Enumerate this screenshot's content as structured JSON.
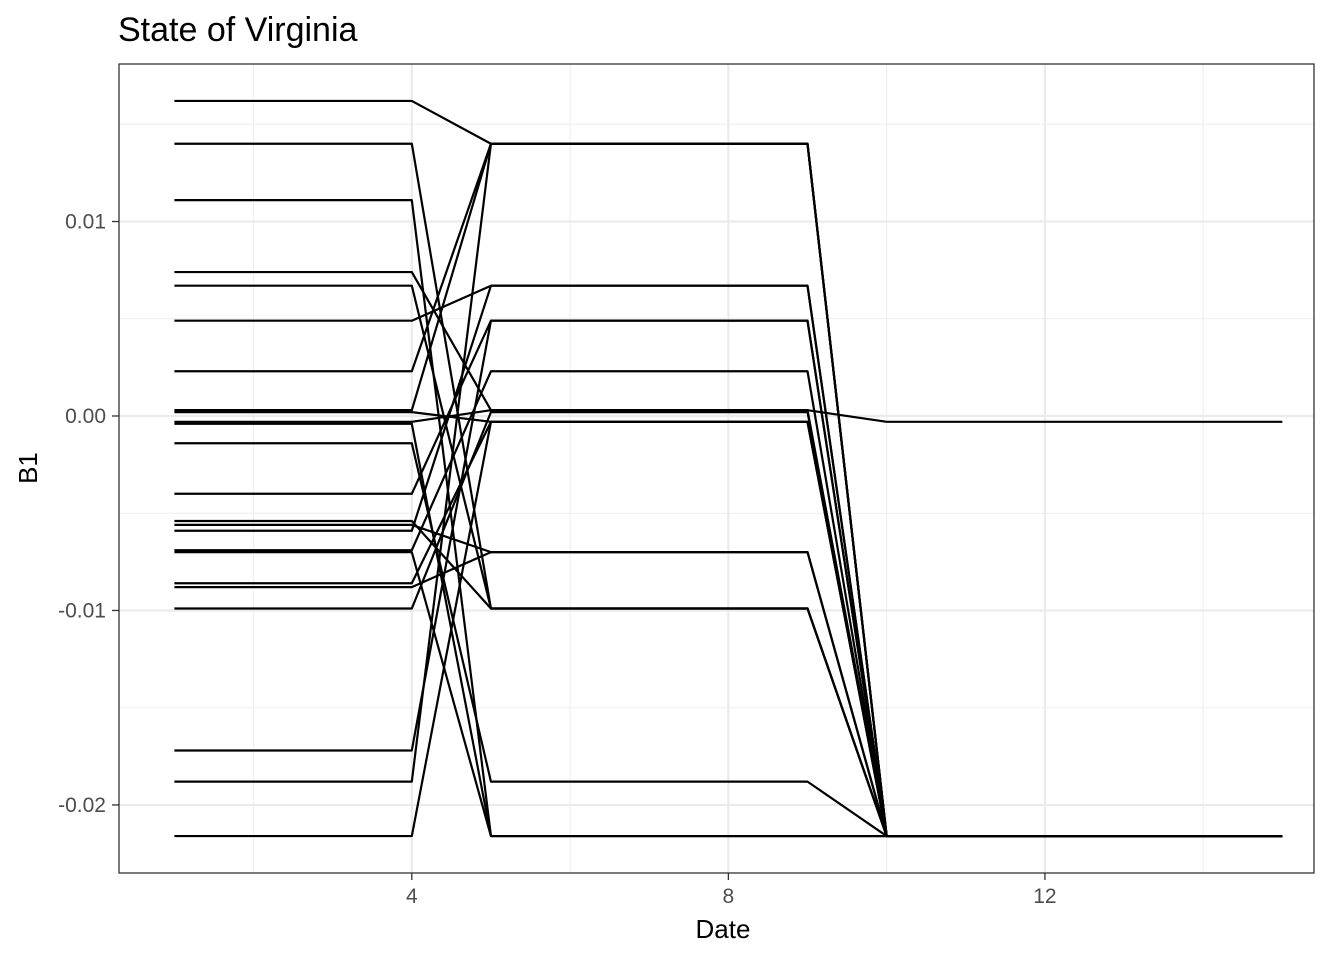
{
  "chart_data": {
    "type": "line",
    "title": "State of Virginia",
    "xlabel": "Date",
    "ylabel": "B1",
    "xlim": [
      0.3,
      15.4
    ],
    "ylim": [
      -0.0235,
      0.0181
    ],
    "x_ticks": [
      4,
      8,
      12
    ],
    "x_tick_labels": [
      "4",
      "8",
      "12"
    ],
    "y_ticks": [
      -0.02,
      -0.01,
      0.0,
      0.01
    ],
    "y_tick_labels": [
      "-0.02",
      "-0.01",
      "0.00",
      "0.01"
    ],
    "grid": true,
    "legend": "none",
    "line_color": "#000000",
    "x": [
      1,
      4,
      5,
      9,
      10,
      15
    ],
    "series": [
      {
        "values": [
          0.0162,
          0.0162,
          0.014,
          0.014,
          -0.0216,
          -0.0216
        ]
      },
      {
        "values": [
          0.014,
          0.014,
          -0.0099,
          -0.0099,
          -0.0216,
          -0.0216
        ]
      },
      {
        "values": [
          0.0111,
          0.0111,
          -0.0216,
          -0.0216,
          -0.0216,
          -0.0216
        ]
      },
      {
        "values": [
          0.0074,
          0.0074,
          0.0003,
          0.0003,
          -0.0216,
          -0.0216
        ]
      },
      {
        "values": [
          0.0067,
          0.0067,
          -0.0099,
          -0.0099,
          -0.0216,
          -0.0216
        ]
      },
      {
        "values": [
          0.0049,
          0.0049,
          0.0067,
          0.0067,
          -0.0216,
          -0.0216
        ]
      },
      {
        "values": [
          0.0023,
          0.0023,
          0.014,
          0.014,
          -0.0216,
          -0.0216
        ]
      },
      {
        "values": [
          0.0003,
          0.0003,
          0.014,
          0.014,
          -0.0216,
          -0.0216
        ]
      },
      {
        "values": [
          0.0002,
          0.0002,
          -0.0003,
          -0.0003,
          -0.0216,
          -0.0216
        ]
      },
      {
        "values": [
          -0.0003,
          -0.0003,
          0.0003,
          0.0003,
          -0.0003,
          -0.0003
        ]
      },
      {
        "values": [
          -0.0004,
          -0.0004,
          -0.0216,
          -0.0216,
          -0.0216,
          -0.0216
        ]
      },
      {
        "values": [
          -0.0014,
          -0.0014,
          -0.0188,
          -0.0188,
          -0.0216,
          -0.0216
        ]
      },
      {
        "values": [
          -0.004,
          -0.004,
          0.0049,
          0.0049,
          -0.0216,
          -0.0216
        ]
      },
      {
        "values": [
          -0.0054,
          -0.0054,
          -0.0099,
          -0.0099,
          -0.0216,
          -0.0216
        ]
      },
      {
        "values": [
          -0.0056,
          -0.0056,
          -0.007,
          -0.007,
          -0.0216,
          -0.0216
        ]
      },
      {
        "values": [
          -0.0059,
          -0.0059,
          0.0067,
          0.0067,
          -0.0216,
          -0.0216
        ]
      },
      {
        "values": [
          -0.0069,
          -0.0069,
          0.0023,
          0.0023,
          -0.0216,
          -0.0216
        ]
      },
      {
        "values": [
          -0.007,
          -0.007,
          -0.0216,
          -0.0216,
          -0.0216,
          -0.0216
        ]
      },
      {
        "values": [
          -0.0086,
          -0.0086,
          -0.0003,
          -0.0003,
          -0.0216,
          -0.0216
        ]
      },
      {
        "values": [
          -0.0088,
          -0.0088,
          -0.007,
          -0.007,
          -0.0216,
          -0.0216
        ]
      },
      {
        "values": [
          -0.0099,
          -0.0099,
          0.0002,
          0.0002,
          -0.0216,
          -0.0216
        ]
      },
      {
        "values": [
          -0.0172,
          -0.0172,
          0.0049,
          0.0049,
          -0.0216,
          -0.0216
        ]
      },
      {
        "values": [
          -0.0188,
          -0.0188,
          0.014,
          0.014,
          -0.0216,
          -0.0216
        ]
      },
      {
        "values": [
          -0.0216,
          -0.0216,
          -0.0003,
          -0.0003,
          -0.0216,
          -0.0216
        ]
      }
    ]
  }
}
